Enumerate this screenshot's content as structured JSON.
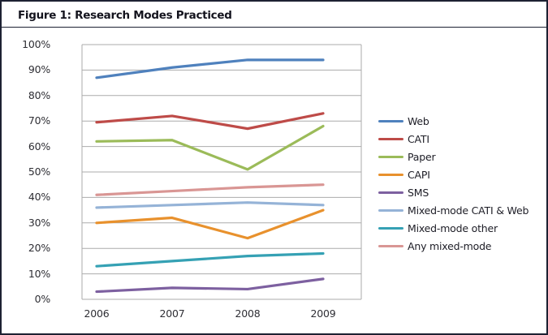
{
  "figure": {
    "title": "Figure 1: Research Modes Practiced"
  },
  "chart_data": {
    "type": "line",
    "title": "Figure 1: Research Modes Practiced",
    "xlabel": "",
    "ylabel": "",
    "categories": [
      "2006",
      "2007",
      "2008",
      "2009"
    ],
    "series": [
      {
        "name": "Web",
        "color": "#4F81BD",
        "values": [
          87,
          91,
          94,
          94
        ]
      },
      {
        "name": "CATI",
        "color": "#BE4B48",
        "values": [
          69.5,
          72,
          67,
          73
        ]
      },
      {
        "name": "Paper",
        "color": "#9BBB59",
        "values": [
          62,
          62.5,
          51,
          68
        ]
      },
      {
        "name": "CAPI",
        "color": "#E8912D",
        "values": [
          30,
          32,
          24,
          35
        ]
      },
      {
        "name": "SMS",
        "color": "#7D60A0",
        "values": [
          3,
          4.5,
          4,
          8
        ]
      },
      {
        "name": "Mixed-mode CATI & Web",
        "color": "#95B3D7",
        "values": [
          36,
          37,
          38,
          37
        ]
      },
      {
        "name": "Mixed-mode other",
        "color": "#35A1B4",
        "values": [
          13,
          15,
          17,
          18
        ]
      },
      {
        "name": "Any mixed-mode",
        "color": "#D99694",
        "values": [
          41,
          42.5,
          44,
          45
        ]
      }
    ],
    "ylim": [
      0,
      100
    ],
    "y_tick_step": 10,
    "y_ticks": [
      "0%",
      "10%",
      "20%",
      "30%",
      "40%",
      "50%",
      "60%",
      "70%",
      "80%",
      "90%",
      "100%"
    ],
    "grid": true,
    "legend_position": "right"
  },
  "colors": {
    "outer_border": "#1d2132",
    "grid": "#ABABAB",
    "axis_text": "#2e2e34",
    "title_text": "#14141e",
    "background": "#FFFFFF"
  }
}
